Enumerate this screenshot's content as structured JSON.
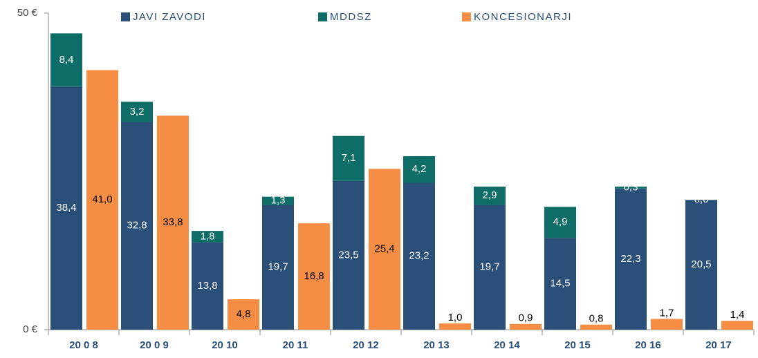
{
  "chart_data": {
    "type": "bar",
    "categories": [
      "20 0 8",
      "20 0 9",
      "20 10",
      "20 11",
      "20 12",
      "20 13",
      "20 14",
      "20 15",
      "20 16",
      "20 17"
    ],
    "series": [
      {
        "name": "JAVI ZAVODI",
        "color": "#2a5079",
        "values": [
          38.4,
          32.8,
          13.8,
          19.7,
          23.5,
          23.2,
          19.7,
          14.5,
          22.3,
          20.5
        ],
        "value_labels": [
          "38,4",
          "32,8",
          "13,8",
          "19,7",
          "23,5",
          "23,2",
          "19,7",
          "14,5",
          "22,3",
          "20,5"
        ]
      },
      {
        "name": "MDDSZ",
        "color": "#0e6e67",
        "values": [
          8.4,
          3.2,
          1.8,
          1.3,
          7.1,
          4.2,
          2.9,
          4.9,
          0.3,
          0.0
        ],
        "value_labels": [
          "8,4",
          "3,2",
          "1,8",
          "1,3",
          "7,1",
          "4,2",
          "2,9",
          "4,9",
          "0,3",
          "0,0"
        ]
      },
      {
        "name": "KONCESIONARJI",
        "color": "#f68d45",
        "values": [
          41.0,
          33.8,
          4.8,
          16.8,
          25.4,
          1.0,
          0.9,
          0.8,
          1.7,
          1.4
        ],
        "value_labels": [
          "41,0",
          "33,8",
          "4,8",
          "16,8",
          "25,4",
          "1,0",
          "0,9",
          "0,8",
          "1,7",
          "1,4"
        ]
      }
    ],
    "stacks": [
      [
        0,
        1
      ],
      [
        2
      ]
    ],
    "ylim": [
      0,
      50
    ],
    "yticks": [
      {
        "value": 0,
        "label": "0 €"
      },
      {
        "value": 50,
        "label": "50 €"
      }
    ]
  }
}
